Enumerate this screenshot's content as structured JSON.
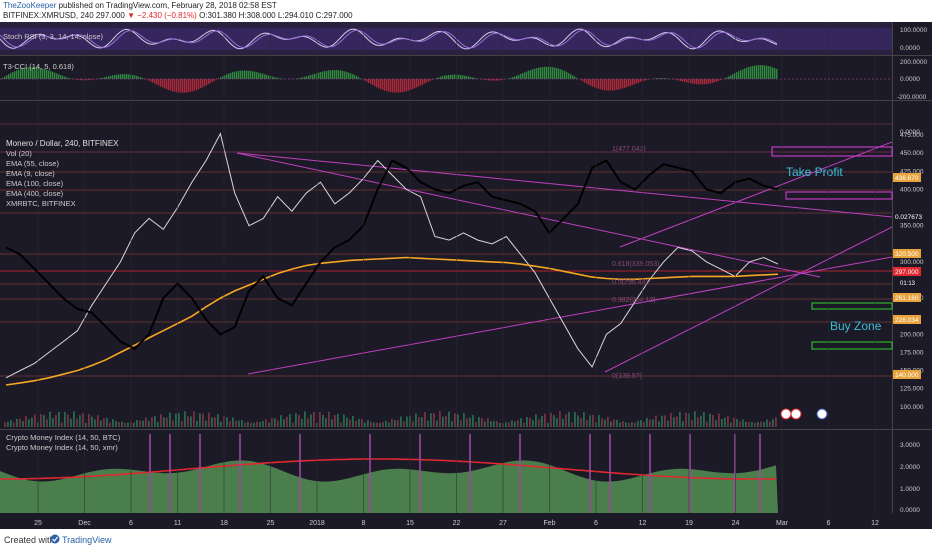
{
  "header": {
    "author": "TheZooKeeper",
    "published_text": "published on TradingView.com, February 28, 2018 02:58 EST",
    "symbol": "BITFINEX:XMRUSD, 240",
    "price": "297.000",
    "change": "▼ −2.430 (−0.81%)",
    "open": "O:301.380",
    "high": "H:308.000",
    "low": "L:294.010",
    "close": "C:297.000"
  },
  "footer": {
    "created_with": "Created with",
    "brand": "TradingView"
  },
  "panes": {
    "stoch_rsi": {
      "label": "Stoch RSI (3, 3, 14, 14, close)",
      "axis": [
        "100.0000",
        "0.0000"
      ]
    },
    "t3_cci": {
      "label": "T3-CCI (14, 5, 0.618)",
      "axis": [
        "200.0000",
        "0.0000",
        "-200.0000"
      ]
    },
    "main": {
      "legend": [
        "Monero / Dollar, 240, BITFINEX",
        "Vol (20)",
        "EMA (55, close)",
        "EMA (9, close)",
        "EMA (100, close)",
        "EMA (400, close)",
        "XMRBTC, BITFINEX"
      ],
      "axis_top": "0.0000"
    },
    "cmi": {
      "legend": [
        "Crypto Money Index (14, 50, BTC)",
        "Crypto Money Index (14, 50, xmr)"
      ],
      "axis": [
        "3.0000",
        "2.0000",
        "1.0000",
        "0.0000"
      ]
    }
  },
  "annotations": {
    "take_profit": "Take Profit",
    "buy_zone": "Buy Zone"
  },
  "fib_labels": [
    "1(477.043)",
    "0.618(339.053)",
    "0.5(296.48)",
    "0.382(254.12)",
    "0(139.5?)"
  ],
  "price_badges": [
    {
      "text": "436.670",
      "color": "#e8a33c"
    },
    {
      "text": "0.027673",
      "color": "#1c1a26"
    },
    {
      "text": "320.500",
      "color": "#e8a33c"
    },
    {
      "text": "297.000",
      "color": "#e0282e"
    },
    {
      "text": "261.160",
      "color": "#e8a33c"
    },
    {
      "text": "226.034",
      "color": "#e8a33c"
    },
    {
      "text": "140.000",
      "color": "#e8a33c"
    }
  ],
  "badge_extra": "01:13",
  "chart_data": {
    "type": "line",
    "title": "Monero / Dollar, 240, BITFINEX",
    "x_ticks": [
      "25",
      "Dec",
      "6",
      "11",
      "18",
      "25",
      "2018",
      "8",
      "15",
      "22",
      "27",
      "Feb",
      "6",
      "12",
      "19",
      "24",
      "Mar",
      "6",
      "12"
    ],
    "y_ticks": [
      "475.000",
      "450.000",
      "425.000",
      "400.000",
      "350.000",
      "300.000",
      "250.000",
      "200.000",
      "175.000",
      "150.000",
      "125.000",
      "100.000"
    ],
    "ylim": [
      90,
      500
    ],
    "series": [
      {
        "name": "Monero / Dollar, 240, BITFINEX",
        "color": "#d8d8d8",
        "values": [
          140,
          150,
          160,
          175,
          190,
          205,
          240,
          270,
          300,
          340,
          360,
          345,
          375,
          410,
          440,
          477,
          395,
          350,
          360,
          390,
          370,
          395,
          410,
          380,
          395,
          415,
          440,
          420,
          400,
          390,
          335,
          330,
          340,
          330,
          325,
          335,
          310,
          285,
          250,
          215,
          180,
          155,
          200,
          215,
          245,
          275,
          300,
          320,
          315,
          300,
          290,
          280,
          300,
          306,
          297
        ]
      },
      {
        "name": "EMA (400, close)",
        "color": "#f5a623",
        "values": [
          130,
          133,
          136,
          140,
          145,
          150,
          157,
          165,
          175,
          185,
          195,
          205,
          215,
          225,
          238,
          250,
          260,
          268,
          276,
          284,
          290,
          295,
          298,
          300,
          302,
          303,
          304,
          305,
          306,
          305,
          304,
          303,
          302,
          301,
          300,
          299,
          297,
          294,
          291,
          287,
          283,
          279,
          277,
          276,
          276,
          277,
          278,
          279,
          280,
          280,
          280,
          280,
          281,
          282,
          283
        ]
      },
      {
        "name": "XMRBTC, BITFINEX",
        "color": "#000000",
        "values": [
          320,
          310,
          290,
          270,
          250,
          235,
          230,
          210,
          190,
          180,
          200,
          250,
          270,
          250,
          220,
          200,
          210,
          260,
          280,
          250,
          240,
          270,
          300,
          320,
          330,
          350,
          400,
          440,
          430,
          410,
          400,
          395,
          405,
          410,
          390,
          385,
          380,
          370,
          340,
          360,
          380,
          430,
          440,
          410,
          400,
          420,
          435,
          430,
          425,
          400,
          395,
          410,
          415,
          405,
          400
        ]
      }
    ]
  }
}
